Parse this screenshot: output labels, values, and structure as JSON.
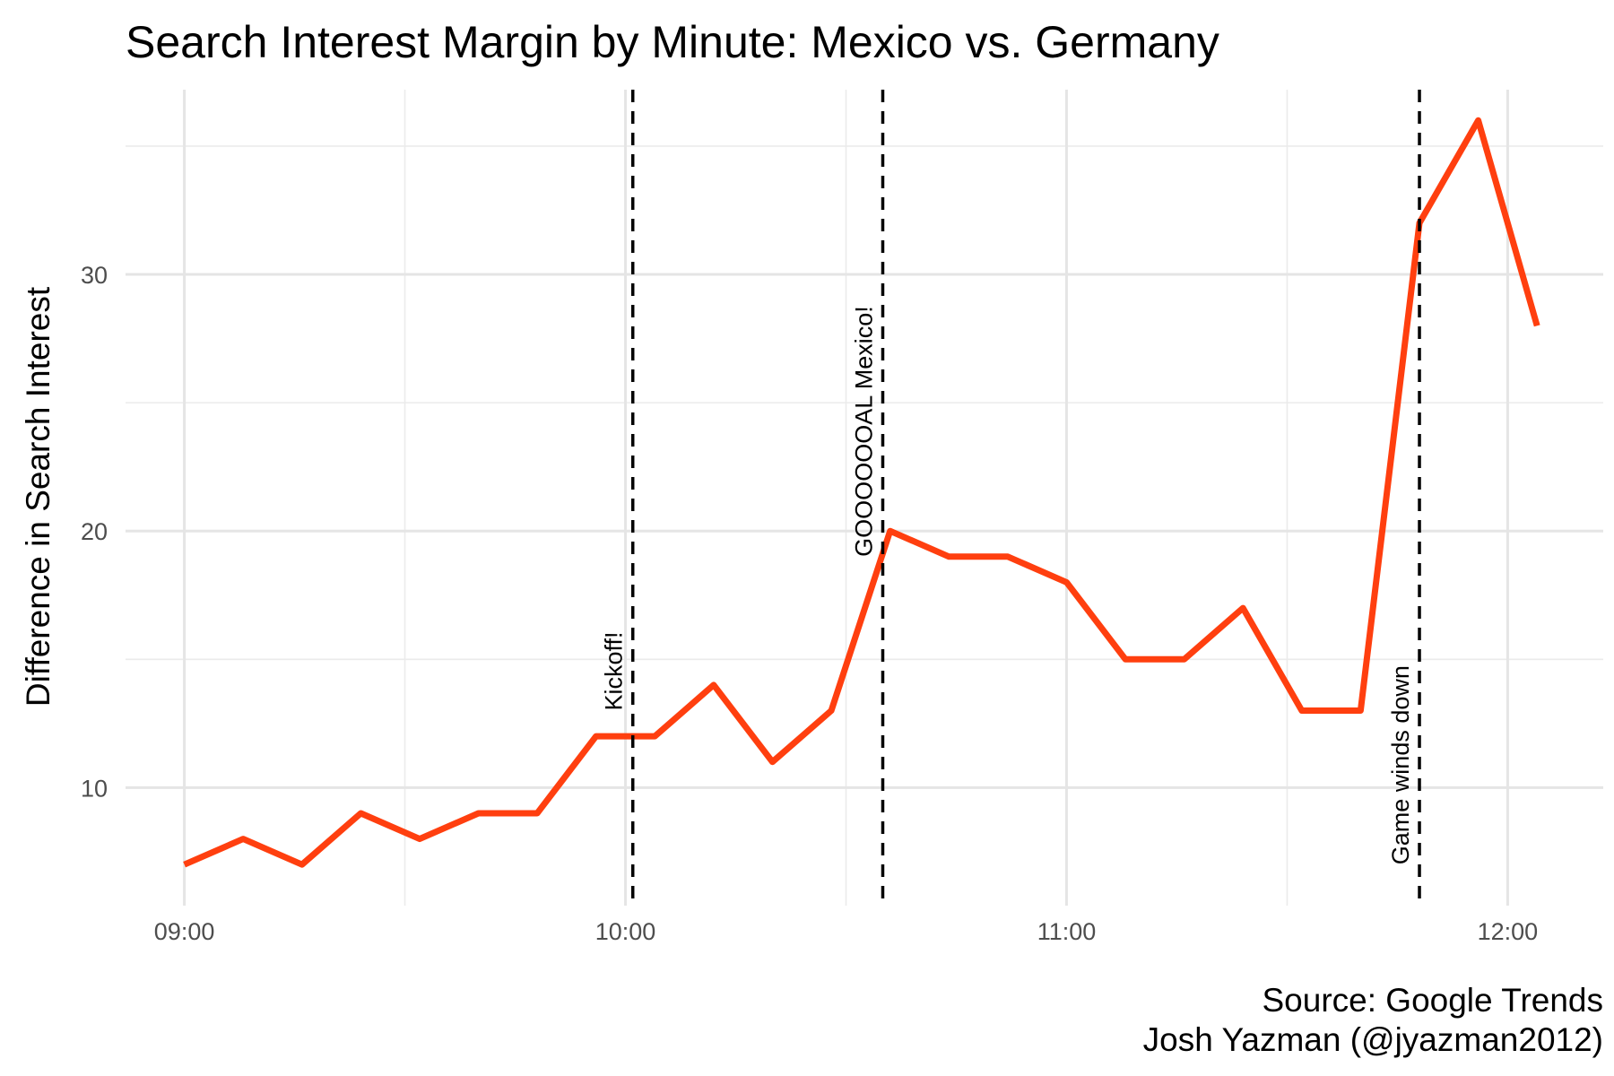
{
  "chart_data": {
    "type": "line",
    "title": "Search Interest Margin by Minute: Mexico vs. Germany",
    "xlabel": "",
    "ylabel": "Difference in Search Interest",
    "x_ticks": [
      "09:00",
      "10:00",
      "11:00",
      "12:00"
    ],
    "y_ticks": [
      10,
      20,
      30
    ],
    "xlim": [
      "08:52",
      "12:13"
    ],
    "ylim": [
      5.4,
      37.2
    ],
    "grid": true,
    "legend": "none",
    "series": [
      {
        "color": "#ff3f0f",
        "points": [
          {
            "x": "09:00",
            "y": 7
          },
          {
            "x": "09:08",
            "y": 8
          },
          {
            "x": "09:16",
            "y": 7
          },
          {
            "x": "09:24",
            "y": 9
          },
          {
            "x": "09:32",
            "y": 8
          },
          {
            "x": "09:40",
            "y": 9
          },
          {
            "x": "09:48",
            "y": 9
          },
          {
            "x": "09:56",
            "y": 12
          },
          {
            "x": "10:04",
            "y": 12
          },
          {
            "x": "10:12",
            "y": 14
          },
          {
            "x": "10:20",
            "y": 11
          },
          {
            "x": "10:28",
            "y": 13
          },
          {
            "x": "10:36",
            "y": 20
          },
          {
            "x": "10:44",
            "y": 19
          },
          {
            "x": "10:52",
            "y": 19
          },
          {
            "x": "11:00",
            "y": 18
          },
          {
            "x": "11:08",
            "y": 15
          },
          {
            "x": "11:16",
            "y": 15
          },
          {
            "x": "11:24",
            "y": 17
          },
          {
            "x": "11:32",
            "y": 13
          },
          {
            "x": "11:40",
            "y": 13
          },
          {
            "x": "11:48",
            "y": 32
          },
          {
            "x": "11:56",
            "y": 36
          },
          {
            "x": "12:04",
            "y": 28
          }
        ]
      }
    ],
    "annotations": [
      {
        "x": "10:01",
        "label": "Kickoff!",
        "label_y": 13
      },
      {
        "x": "10:35",
        "label": "GOOOOOOAL Mexico!",
        "label_y": 19
      },
      {
        "x": "11:48",
        "label": "Game winds down",
        "label_y": 7
      }
    ],
    "annotation_line_color": "#000000",
    "caption": [
      "Source: Google Trends",
      "Josh Yazman (@jyazman2012)"
    ]
  }
}
